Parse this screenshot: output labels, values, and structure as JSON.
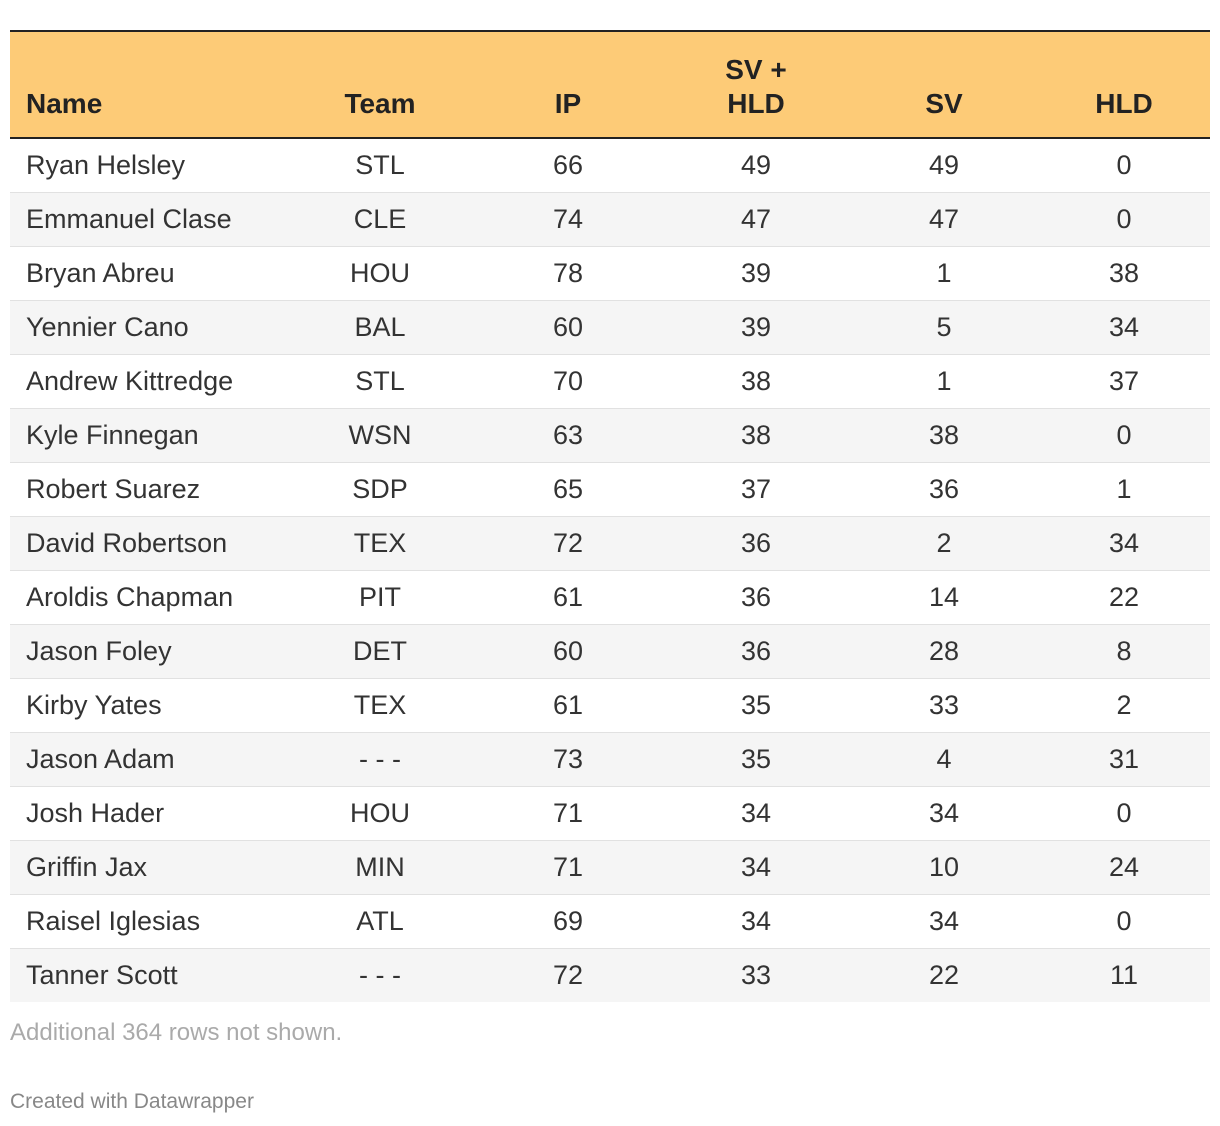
{
  "table": {
    "columns": [
      "Name",
      "Team",
      "IP",
      "SV +\nHLD",
      "SV",
      "HLD"
    ],
    "rows": [
      [
        "Ryan Helsley",
        "STL",
        "66",
        "49",
        "49",
        "0"
      ],
      [
        "Emmanuel Clase",
        "CLE",
        "74",
        "47",
        "47",
        "0"
      ],
      [
        "Bryan Abreu",
        "HOU",
        "78",
        "39",
        "1",
        "38"
      ],
      [
        "Yennier Cano",
        "BAL",
        "60",
        "39",
        "5",
        "34"
      ],
      [
        "Andrew Kittredge",
        "STL",
        "70",
        "38",
        "1",
        "37"
      ],
      [
        "Kyle Finnegan",
        "WSN",
        "63",
        "38",
        "38",
        "0"
      ],
      [
        "Robert Suarez",
        "SDP",
        "65",
        "37",
        "36",
        "1"
      ],
      [
        "David Robertson",
        "TEX",
        "72",
        "36",
        "2",
        "34"
      ],
      [
        "Aroldis Chapman",
        "PIT",
        "61",
        "36",
        "14",
        "22"
      ],
      [
        "Jason Foley",
        "DET",
        "60",
        "36",
        "28",
        "8"
      ],
      [
        "Kirby Yates",
        "TEX",
        "61",
        "35",
        "33",
        "2"
      ],
      [
        "Jason Adam",
        "- - -",
        "73",
        "35",
        "4",
        "31"
      ],
      [
        "Josh Hader",
        "HOU",
        "71",
        "34",
        "34",
        "0"
      ],
      [
        "Griffin Jax",
        "MIN",
        "71",
        "34",
        "10",
        "24"
      ],
      [
        "Raisel Iglesias",
        "ATL",
        "69",
        "34",
        "34",
        "0"
      ],
      [
        "Tanner Scott",
        "- - -",
        "72",
        "33",
        "22",
        "11"
      ]
    ]
  },
  "notes": "Additional 364 rows not shown.",
  "credit": "Created with Datawrapper",
  "colors": {
    "header_background": "#fdcb77",
    "stripe": "#f5f5f5",
    "text": "#333333"
  }
}
